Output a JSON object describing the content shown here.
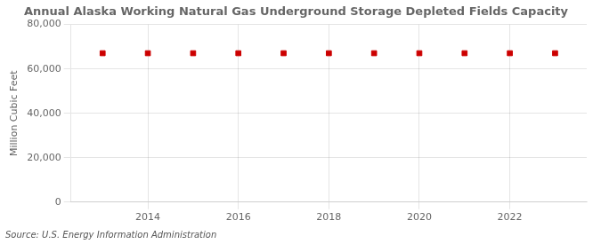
{
  "chart_data": {
    "type": "scatter",
    "title": "Annual Alaska Working Natural Gas Underground Storage Depleted Fields Capacity",
    "ylabel": "Million Cubic Feet",
    "source": "Source: U.S. Energy Information Administration",
    "x": [
      2013,
      2014,
      2015,
      2016,
      2017,
      2018,
      2019,
      2020,
      2021,
      2022,
      2023
    ],
    "values": [
      67054,
      67054,
      67054,
      67054,
      67054,
      67054,
      67054,
      67054,
      67054,
      67054,
      67054
    ],
    "color": "#cc0000",
    "marker": "square",
    "xlim": [
      2012.3,
      2023.7
    ],
    "xticks": [
      2014,
      2016,
      2018,
      2020,
      2022
    ],
    "ylim": [
      0,
      80000
    ],
    "yticks": [
      0,
      {
        "value": 20000,
        "label": "20,000"
      },
      {
        "value": 40000,
        "label": "40,000"
      },
      {
        "value": 60000,
        "label": "60,000"
      },
      {
        "value": 80000,
        "label": "80,000"
      }
    ],
    "grid": true
  }
}
